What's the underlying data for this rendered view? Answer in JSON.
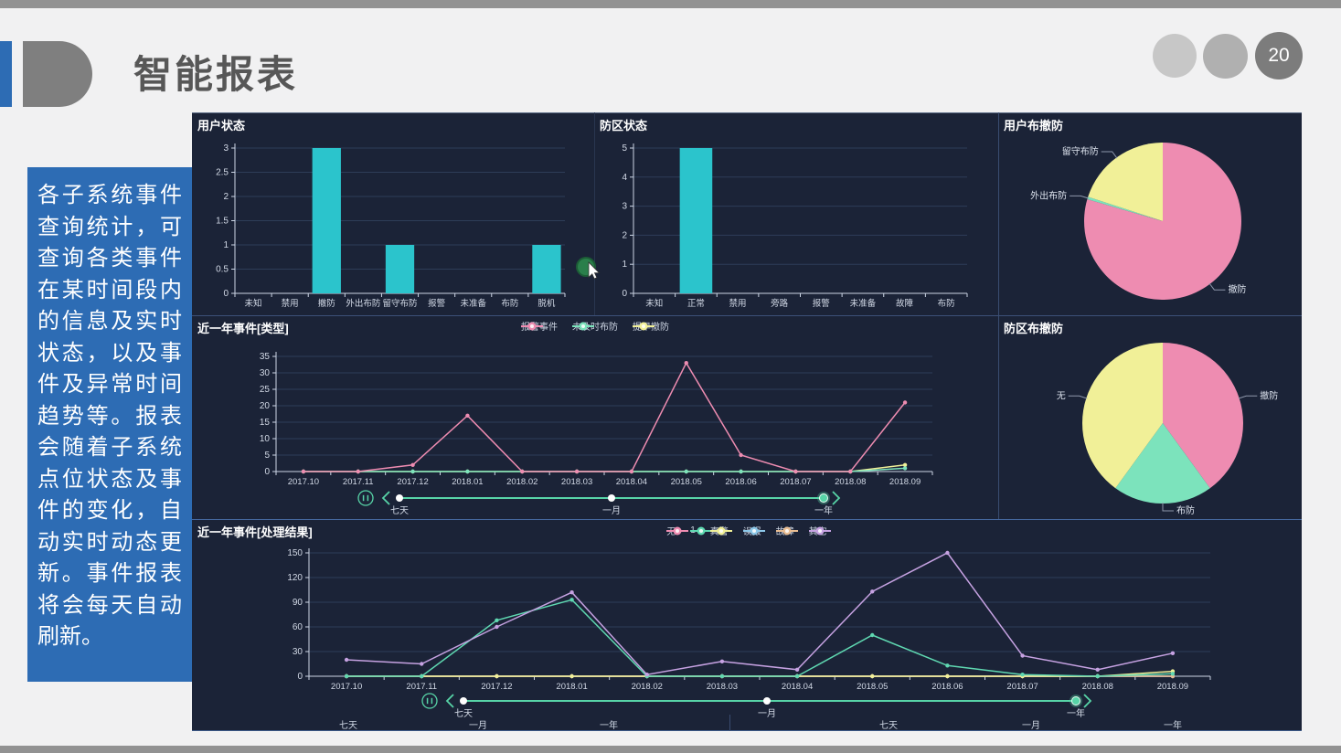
{
  "slide": {
    "title": "智能报表",
    "page_number": "20",
    "sidebar_text": "各子系统事件查询统计，可查询各类事件在某时间段内的信息及实时状态，以及事件及异常时间趋势等。报表会随着子系统点位状态及事件的变化，自动实时动态更新。事件报表将会每天自动刷新。"
  },
  "colors": {
    "accent_blue": "#2d6cb4",
    "dashboard_bg": "#1b2337",
    "cyan": "#2bc4cc",
    "pink": "#ee8cb1",
    "yellow": "#f1f098",
    "mint": "#7ce3bc",
    "teal": "#5fd8b1",
    "purple": "#c6a2e2",
    "blue": "#8cc7e8",
    "orange": "#e9bd92",
    "slider": "#57d4a7",
    "grid": "#2e3d58",
    "axis": "#cdd6e6",
    "tick": "#d2d9e6"
  },
  "chart_data": [
    {
      "id": "chartA",
      "type": "bar",
      "title": "用户状态",
      "categories": [
        "未知",
        "禁用",
        "撤防",
        "外出布防",
        "留守布防",
        "报警",
        "未准备",
        "布防",
        "脱机"
      ],
      "values": [
        0,
        0,
        3,
        0,
        1,
        0,
        0,
        0,
        1
      ],
      "ylim": [
        0,
        3
      ],
      "ytick_step": 0.5,
      "color_key": "cyan",
      "grid": true,
      "legend_position": "none"
    },
    {
      "id": "chartB",
      "type": "bar",
      "title": "防区状态",
      "categories": [
        "未知",
        "正常",
        "禁用",
        "旁路",
        "报警",
        "未准备",
        "故障",
        "布防"
      ],
      "values": [
        0,
        5,
        0,
        0,
        0,
        0,
        0,
        0
      ],
      "ylim": [
        0,
        5
      ],
      "ytick_step": 1,
      "color_key": "cyan",
      "grid": true,
      "legend_position": "none"
    },
    {
      "id": "pieC",
      "type": "pie",
      "title": "用户布撤防",
      "slices": [
        {
          "label": "撤防",
          "pct": 79.5,
          "color_key": "pink"
        },
        {
          "label": "外出布防",
          "pct": 0.5,
          "color_key": "mint"
        },
        {
          "label": "留守布防",
          "pct": 20,
          "color_key": "yellow"
        }
      ]
    },
    {
      "id": "chartD",
      "type": "line",
      "title": "近一年事件[类型]",
      "categories": [
        "2017.10",
        "2017.11",
        "2017.12",
        "2018.01",
        "2018.02",
        "2018.03",
        "2018.04",
        "2018.05",
        "2018.06",
        "2018.07",
        "2018.08",
        "2018.09"
      ],
      "ylim": [
        0,
        35
      ],
      "ytick_step": 5,
      "grid": true,
      "legend_position": "top-center",
      "series": [
        {
          "name": "提早撤防",
          "color_key": "yellow",
          "values": [
            0,
            0,
            0,
            0,
            0,
            0,
            0,
            0,
            0,
            0,
            0,
            2
          ]
        },
        {
          "name": "未及时布防",
          "color_key": "mint",
          "values": [
            0,
            0,
            0,
            0,
            0,
            0,
            0,
            0,
            0,
            0,
            0,
            1
          ]
        },
        {
          "name": "报警事件",
          "color_key": "pink",
          "values": [
            0,
            0,
            2,
            17,
            0,
            0,
            0,
            33,
            5,
            0,
            0,
            21
          ]
        }
      ],
      "legend": [
        "报警事件",
        "未及时布防",
        "提早撤防"
      ],
      "legend_colors": [
        "pink",
        "mint",
        "yellow"
      ]
    },
    {
      "id": "pieE",
      "type": "pie",
      "title": "防区布撤防",
      "slices": [
        {
          "label": "撤防",
          "pct": 40,
          "color_key": "pink"
        },
        {
          "label": "布防",
          "pct": 20,
          "color_key": "mint"
        },
        {
          "label": "无",
          "pct": 40,
          "color_key": "yellow"
        }
      ]
    },
    {
      "id": "chartF",
      "type": "line",
      "title": "近一年事件[处理结果]",
      "categories": [
        "2017.10",
        "2017.11",
        "2017.12",
        "2018.01",
        "2018.02",
        "2018.03",
        "2018.04",
        "2018.05",
        "2018.06",
        "2018.07",
        "2018.08",
        "2018.09"
      ],
      "ylim": [
        0,
        150
      ],
      "ytick_step": 30,
      "grid": true,
      "legend_position": "top-center",
      "series": [
        {
          "name": "无",
          "color_key": "pink",
          "values": [
            0,
            0,
            0,
            0,
            0,
            0,
            0,
            0,
            0,
            0,
            0,
            0
          ]
        },
        {
          "name": "误报",
          "color_key": "blue",
          "values": [
            0,
            0,
            0,
            0,
            0,
            0,
            0,
            0,
            0,
            0,
            0,
            0
          ]
        },
        {
          "name": "故障",
          "color_key": "orange",
          "values": [
            0,
            0,
            0,
            0,
            0,
            0,
            0,
            0,
            0,
            0,
            0,
            0
          ]
        },
        {
          "name": "真警",
          "color_key": "yellow",
          "values": [
            0,
            0,
            0,
            0,
            0,
            0,
            0,
            0,
            0,
            0,
            0,
            6
          ]
        },
        {
          "name": "1",
          "color_key": "teal",
          "values": [
            0,
            0,
            68,
            93,
            0,
            0,
            0,
            50,
            13,
            2,
            0,
            3
          ]
        },
        {
          "name": "其它",
          "color_key": "purple",
          "values": [
            20,
            15,
            60,
            102,
            2,
            18,
            8,
            103,
            150,
            25,
            8,
            28
          ]
        }
      ],
      "legend": [
        "无",
        "1",
        "真警",
        "误报",
        "故障",
        "其它"
      ],
      "legend_colors": [
        "pink",
        "teal",
        "yellow",
        "blue",
        "orange",
        "purple"
      ]
    }
  ],
  "sliders": [
    {
      "labels": [
        "七天",
        "一月",
        "一年"
      ],
      "selected": "一年",
      "selected_index": 2
    },
    {
      "labels": [
        "七天",
        "一月",
        "一年"
      ],
      "selected": "一年",
      "selected_index": 2
    }
  ],
  "footer": {
    "labels": [
      "七天",
      "一月",
      "一年",
      "七天",
      "一月",
      "一年"
    ]
  }
}
